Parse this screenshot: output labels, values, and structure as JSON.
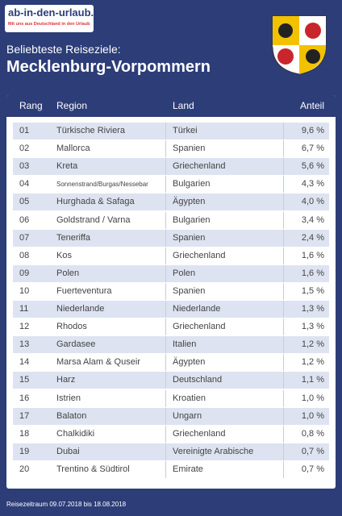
{
  "header": {
    "logo": "ab-in-den-urlaub.de",
    "tagline": "Mit uns aus Deutschland in den Urlaub",
    "subtitle": "Beliebteste Reiseziele:",
    "title": "Mecklenburg-Vorpommern"
  },
  "table": {
    "columns": [
      "Rang",
      "Region",
      "Land",
      "Anteil"
    ],
    "rows": [
      [
        "01",
        "Türkische Riviera",
        "Türkei",
        "9,6 %"
      ],
      [
        "02",
        "Mallorca",
        "Spanien",
        "6,7 %"
      ],
      [
        "03",
        "Kreta",
        "Griechenland",
        "5,6 %"
      ],
      [
        "04",
        "Sonnenstrand/Burgas/Nessebar",
        "Bulgarien",
        "4,3 %"
      ],
      [
        "05",
        "Hurghada & Safaga",
        "Ägypten",
        "4,0 %"
      ],
      [
        "06",
        "Goldstrand / Varna",
        "Bulgarien",
        "3,4 %"
      ],
      [
        "07",
        "Teneriffa",
        "Spanien",
        "2,4 %"
      ],
      [
        "08",
        "Kos",
        "Griechenland",
        "1,6 %"
      ],
      [
        "09",
        "Polen",
        "Polen",
        "1,6 %"
      ],
      [
        "10",
        "Fuerteventura",
        "Spanien",
        "1,5 %"
      ],
      [
        "11",
        "Niederlande",
        "Niederlande",
        "1,3 %"
      ],
      [
        "12",
        "Rhodos",
        "Griechenland",
        "1,3 %"
      ],
      [
        "13",
        "Gardasee",
        "Italien",
        "1,2 %"
      ],
      [
        "14",
        "Marsa Alam & Quseir",
        "Ägypten",
        "1,2 %"
      ],
      [
        "15",
        "Harz",
        "Deutschland",
        "1,1 %"
      ],
      [
        "16",
        "Istrien",
        "Kroatien",
        "1,0 %"
      ],
      [
        "17",
        "Balaton",
        "Ungarn",
        "1,0 %"
      ],
      [
        "18",
        "Chalkidiki",
        "Griechenland",
        "0,8 %"
      ],
      [
        "19",
        "Dubai",
        "Vereinigte Arabische",
        "0,7 %"
      ],
      [
        "20",
        "Trentino & Südtirol",
        "Emirate",
        "0,7 %"
      ]
    ]
  },
  "footer": {
    "note": "Reisezeitraum 09.07.2018 bis 18.08.2018"
  }
}
